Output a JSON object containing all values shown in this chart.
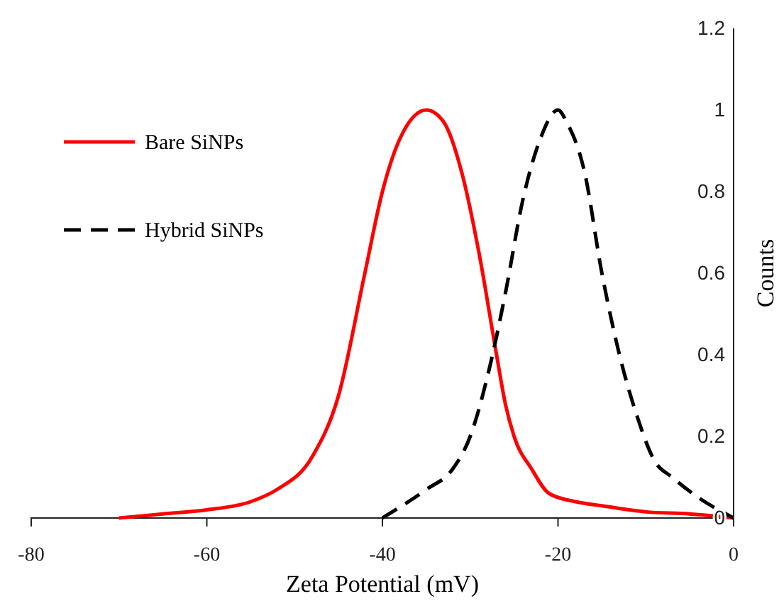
{
  "chart_data": {
    "type": "line",
    "xlabel": "Zeta Potential (mV)",
    "ylabel": "Counts",
    "xlim": [
      -80,
      0
    ],
    "xticks": [
      -80,
      -60,
      -40,
      -20,
      0
    ],
    "ylim": [
      0,
      1.2
    ],
    "yticks": [
      0,
      0.2,
      0.4,
      0.6,
      0.8,
      1,
      1.2
    ],
    "grid": false,
    "legend": "top left",
    "marker": "none",
    "series": [
      {
        "name": "Bare SiNPs",
        "color": "#ff0000",
        "line_style": "solid",
        "x": [
          -70,
          -65,
          -60,
          -55,
          -52,
          -48,
          -45,
          -42,
          -40,
          -38,
          -35,
          -33,
          -31,
          -29,
          -27,
          -26,
          -25,
          -23,
          -21,
          -18,
          -15,
          -10,
          -5,
          0
        ],
        "values": [
          0,
          0.01,
          0.02,
          0.04,
          0.07,
          0.15,
          0.3,
          0.6,
          0.8,
          0.93,
          1,
          0.97,
          0.85,
          0.65,
          0.4,
          0.28,
          0.2,
          0.12,
          0.06,
          0.04,
          0.03,
          0.015,
          0.01,
          0
        ]
      },
      {
        "name": "Hybrid SiNPs",
        "color": "#000000",
        "line_style": "dashed",
        "x": [
          -40,
          -35,
          -32,
          -30,
          -28,
          -26,
          -24,
          -22,
          -20,
          -19,
          -17,
          -15,
          -13,
          -11,
          -9,
          -7,
          -4,
          0
        ],
        "values": [
          0,
          0.07,
          0.12,
          0.2,
          0.35,
          0.55,
          0.78,
          0.93,
          1,
          0.97,
          0.85,
          0.6,
          0.4,
          0.25,
          0.14,
          0.1,
          0.05,
          0
        ]
      }
    ]
  }
}
